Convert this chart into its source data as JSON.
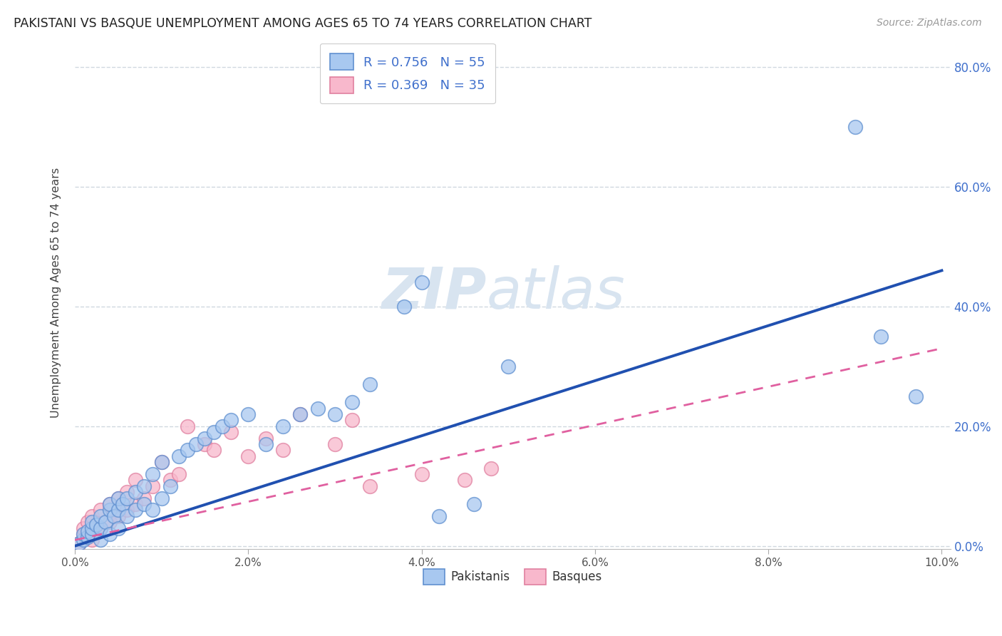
{
  "title": "PAKISTANI VS BASQUE UNEMPLOYMENT AMONG AGES 65 TO 74 YEARS CORRELATION CHART",
  "source": "Source: ZipAtlas.com",
  "ylabel": "Unemployment Among Ages 65 to 74 years",
  "xlim": [
    0.0,
    0.101
  ],
  "ylim": [
    -0.005,
    0.85
  ],
  "xticks": [
    0.0,
    0.02,
    0.04,
    0.06,
    0.08,
    0.1
  ],
  "yticks": [
    0.0,
    0.2,
    0.4,
    0.6,
    0.8
  ],
  "legend_label1": "R = 0.756   N = 55",
  "legend_label2": "R = 0.369   N = 35",
  "legend_bottom_label1": "Pakistanis",
  "legend_bottom_label2": "Basques",
  "blue_fill": "#A8C8F0",
  "pink_fill": "#F8B8CC",
  "blue_edge": "#6090D0",
  "pink_edge": "#E080A0",
  "blue_line": "#2050B0",
  "pink_line": "#E060A0",
  "watermark_color": "#D8E4F0",
  "grid_color": "#D0D8E0",
  "pakistani_x": [
    0.0005,
    0.001,
    0.001,
    0.0015,
    0.0015,
    0.002,
    0.002,
    0.002,
    0.0025,
    0.003,
    0.003,
    0.003,
    0.0035,
    0.004,
    0.004,
    0.004,
    0.0045,
    0.005,
    0.005,
    0.005,
    0.0055,
    0.006,
    0.006,
    0.007,
    0.007,
    0.008,
    0.008,
    0.009,
    0.009,
    0.01,
    0.01,
    0.011,
    0.012,
    0.013,
    0.014,
    0.015,
    0.016,
    0.017,
    0.018,
    0.02,
    0.022,
    0.024,
    0.026,
    0.028,
    0.03,
    0.032,
    0.034,
    0.038,
    0.04,
    0.042,
    0.046,
    0.05,
    0.09,
    0.093,
    0.097
  ],
  "pakistani_y": [
    0.005,
    0.01,
    0.02,
    0.015,
    0.025,
    0.02,
    0.03,
    0.04,
    0.035,
    0.01,
    0.03,
    0.05,
    0.04,
    0.02,
    0.06,
    0.07,
    0.05,
    0.03,
    0.06,
    0.08,
    0.07,
    0.05,
    0.08,
    0.06,
    0.09,
    0.07,
    0.1,
    0.06,
    0.12,
    0.08,
    0.14,
    0.1,
    0.15,
    0.16,
    0.17,
    0.18,
    0.19,
    0.2,
    0.21,
    0.22,
    0.17,
    0.2,
    0.22,
    0.23,
    0.22,
    0.24,
    0.27,
    0.4,
    0.44,
    0.05,
    0.07,
    0.3,
    0.7,
    0.35,
    0.25
  ],
  "basque_x": [
    0.0005,
    0.001,
    0.001,
    0.0015,
    0.002,
    0.002,
    0.003,
    0.003,
    0.004,
    0.004,
    0.005,
    0.005,
    0.006,
    0.006,
    0.007,
    0.007,
    0.008,
    0.009,
    0.01,
    0.011,
    0.012,
    0.013,
    0.015,
    0.016,
    0.018,
    0.02,
    0.022,
    0.024,
    0.026,
    0.03,
    0.032,
    0.034,
    0.04,
    0.045,
    0.048
  ],
  "basque_y": [
    0.005,
    0.02,
    0.03,
    0.04,
    0.01,
    0.05,
    0.03,
    0.06,
    0.04,
    0.07,
    0.05,
    0.08,
    0.06,
    0.09,
    0.07,
    0.11,
    0.08,
    0.1,
    0.14,
    0.11,
    0.12,
    0.2,
    0.17,
    0.16,
    0.19,
    0.15,
    0.18,
    0.16,
    0.22,
    0.17,
    0.21,
    0.1,
    0.12,
    0.11,
    0.13
  ],
  "blue_trend_x": [
    0.0,
    0.1
  ],
  "blue_trend_y": [
    0.0,
    0.46
  ],
  "pink_trend_x": [
    0.0,
    0.1
  ],
  "pink_trend_y": [
    0.01,
    0.33
  ]
}
